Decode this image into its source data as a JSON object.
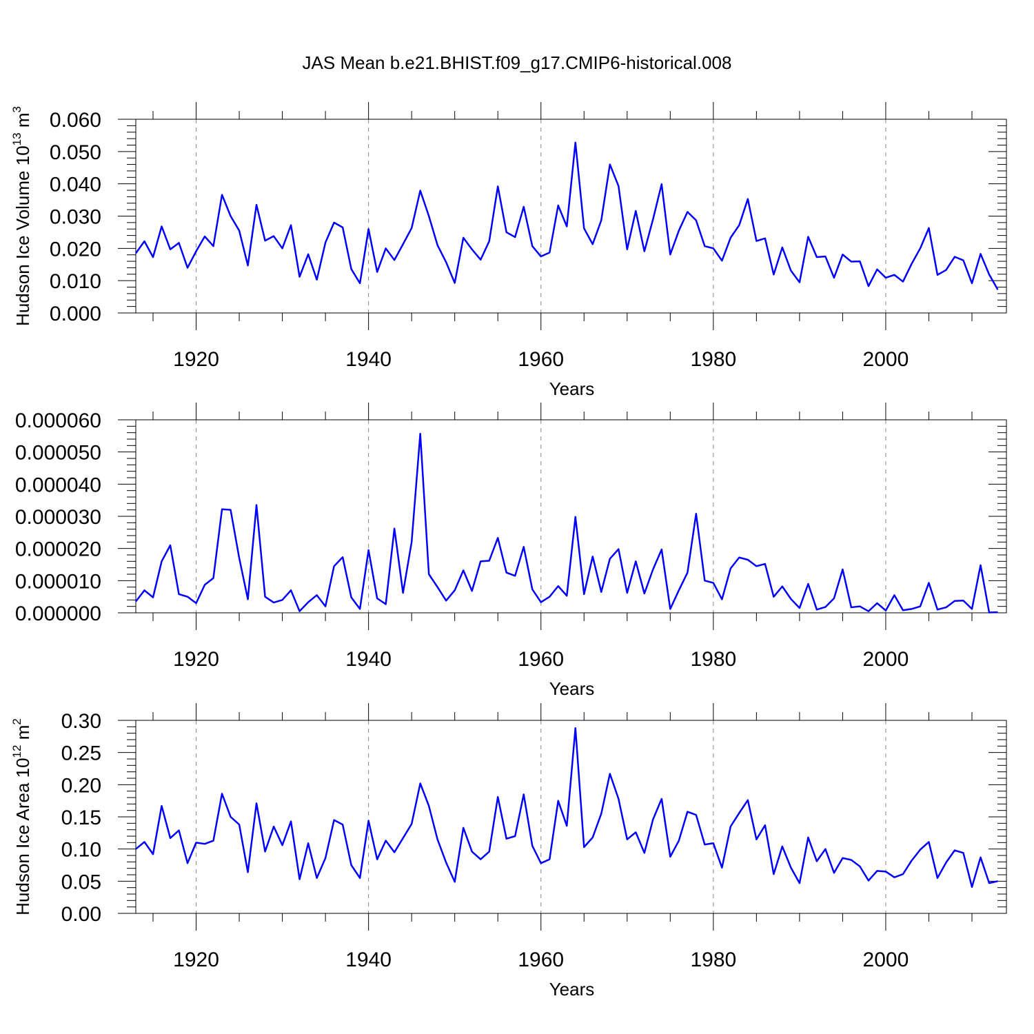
{
  "title": "JAS Mean b.e21.BHIST.f09_g17.CMIP6-historical.008",
  "chart_data": [
    {
      "type": "line",
      "ylabel": "Hudson Ice Volume 10",
      "ylabel_sup": "13",
      "ylabel_unit": " m",
      "ylabel_unit_sup": "3",
      "xlabel": "Years",
      "xlim": [
        1913,
        2014
      ],
      "ylim": [
        0,
        0.06
      ],
      "xticks": [
        1920,
        1940,
        1960,
        1980,
        2000
      ],
      "xtick_labels": [
        "1920",
        "1940",
        "1960",
        "1980",
        "2000"
      ],
      "yticks": [
        0,
        0.01,
        0.02,
        0.03,
        0.04,
        0.05,
        0.06
      ],
      "ytick_labels": [
        "0.000",
        "0.010",
        "0.020",
        "0.030",
        "0.040",
        "0.050",
        "0.060"
      ],
      "grid": "vertical-dashed at major x ticks",
      "x_start": 1913,
      "x_step": 1,
      "series": [
        {
          "color": "#0000ff",
          "values": [
            0.0185,
            0.0222,
            0.0173,
            0.0268,
            0.0197,
            0.0217,
            0.014,
            0.0191,
            0.0237,
            0.0207,
            0.0366,
            0.03,
            0.0255,
            0.0147,
            0.0335,
            0.0224,
            0.0238,
            0.02,
            0.0272,
            0.0112,
            0.0182,
            0.0103,
            0.0218,
            0.028,
            0.0265,
            0.0136,
            0.0092,
            0.026,
            0.0127,
            0.02,
            0.0164,
            0.0213,
            0.0263,
            0.0379,
            0.03,
            0.021,
            0.0157,
            0.0093,
            0.0233,
            0.0197,
            0.0165,
            0.0222,
            0.0392,
            0.025,
            0.0235,
            0.0329,
            0.0207,
            0.0175,
            0.0187,
            0.0333,
            0.0268,
            0.0528,
            0.0262,
            0.0213,
            0.0287,
            0.046,
            0.0393,
            0.0197,
            0.0316,
            0.0191,
            0.029,
            0.0399,
            0.0181,
            0.0255,
            0.0313,
            0.0287,
            0.0207,
            0.02,
            0.0162,
            0.0233,
            0.0272,
            0.0353,
            0.0223,
            0.0231,
            0.0119,
            0.0203,
            0.0131,
            0.0095,
            0.0236,
            0.0173,
            0.0175,
            0.0109,
            0.0181,
            0.0159,
            0.016,
            0.0083,
            0.0135,
            0.0109,
            0.0118,
            0.0097,
            0.0152,
            0.02,
            0.0263,
            0.0118,
            0.0133,
            0.0174,
            0.0163,
            0.0092,
            0.0183,
            0.0119,
            0.0072
          ]
        }
      ]
    },
    {
      "type": "line",
      "ylabel": "",
      "xlabel": "Years",
      "xlim": [
        1913,
        2014
      ],
      "ylim": [
        0,
        6e-05
      ],
      "xticks": [
        1920,
        1940,
        1960,
        1980,
        2000
      ],
      "xtick_labels": [
        "1920",
        "1940",
        "1960",
        "1980",
        "2000"
      ],
      "yticks": [
        0,
        1e-05,
        2e-05,
        3e-05,
        4e-05,
        5e-05,
        6e-05
      ],
      "ytick_labels": [
        "0.000000",
        "0.000010",
        "0.000020",
        "0.000030",
        "0.000040",
        "0.000050",
        "0.000060"
      ],
      "grid": "vertical-dashed at major x ticks",
      "x_start": 1913,
      "x_step": 1,
      "series": [
        {
          "color": "#0000ff",
          "values": [
            3.5e-06,
            7e-06,
            4.8e-06,
            1.6e-05,
            2.1e-05,
            5.8e-06,
            5e-06,
            3e-06,
            8.7e-06,
            1.08e-05,
            3.22e-05,
            3.2e-05,
            1.7e-05,
            4.2e-06,
            3.35e-05,
            5e-06,
            3.2e-06,
            4e-06,
            7e-06,
            5e-07,
            3.3e-06,
            5.5e-06,
            2e-06,
            1.45e-05,
            1.73e-05,
            4.8e-06,
            1.2e-06,
            1.95e-05,
            4.5e-06,
            2.7e-06,
            2.62e-05,
            6.2e-06,
            2.2e-05,
            5.57e-05,
            1.2e-05,
            8e-06,
            3.8e-06,
            7e-06,
            1.32e-05,
            6.8e-06,
            1.6e-05,
            1.62e-05,
            2.33e-05,
            1.25e-05,
            1.15e-05,
            2.05e-05,
            7.3e-06,
            3.3e-06,
            5e-06,
            8.3e-06,
            5.3e-06,
            2.98e-05,
            5.8e-06,
            1.75e-05,
            6.5e-06,
            1.68e-05,
            1.98e-05,
            6.2e-06,
            1.6e-05,
            6e-06,
            1.35e-05,
            1.97e-05,
            1.2e-06,
            7e-06,
            1.25e-05,
            3.08e-05,
            1e-05,
            9.3e-06,
            4.2e-06,
            1.38e-05,
            1.72e-05,
            1.65e-05,
            1.45e-05,
            1.52e-05,
            5e-06,
            8.2e-06,
            4.3e-06,
            1.5e-06,
            9e-06,
            1e-06,
            1.8e-06,
            4.5e-06,
            1.35e-05,
            1.7e-06,
            2e-06,
            5e-07,
            3e-06,
            7e-07,
            5.5e-06,
            8e-07,
            1.2e-06,
            2e-06,
            9.3e-06,
            1e-06,
            1.7e-06,
            3.7e-06,
            3.8e-06,
            1.2e-06,
            1.48e-05,
            1e-07,
            2e-07
          ]
        }
      ]
    },
    {
      "type": "line",
      "ylabel": "Hudson Ice Area 10",
      "ylabel_sup": "12",
      "ylabel_unit": " m",
      "ylabel_unit_sup": "2",
      "xlabel": "Years",
      "xlim": [
        1913,
        2014
      ],
      "ylim": [
        0,
        0.3
      ],
      "xticks": [
        1920,
        1940,
        1960,
        1980,
        2000
      ],
      "xtick_labels": [
        "1920",
        "1940",
        "1960",
        "1980",
        "2000"
      ],
      "yticks": [
        0,
        0.05,
        0.1,
        0.15,
        0.2,
        0.25,
        0.3
      ],
      "ytick_labels": [
        "0.00",
        "0.05",
        "0.10",
        "0.15",
        "0.20",
        "0.25",
        "0.30"
      ],
      "grid": "vertical-dashed at major x ticks",
      "x_start": 1913,
      "x_step": 1,
      "series": [
        {
          "color": "#0000ff",
          "values": [
            0.1,
            0.111,
            0.092,
            0.167,
            0.117,
            0.129,
            0.078,
            0.11,
            0.108,
            0.113,
            0.186,
            0.15,
            0.138,
            0.064,
            0.171,
            0.096,
            0.135,
            0.106,
            0.143,
            0.053,
            0.109,
            0.055,
            0.086,
            0.145,
            0.138,
            0.075,
            0.055,
            0.144,
            0.084,
            0.113,
            0.095,
            0.117,
            0.139,
            0.202,
            0.167,
            0.115,
            0.079,
            0.049,
            0.133,
            0.096,
            0.084,
            0.096,
            0.181,
            0.116,
            0.12,
            0.185,
            0.105,
            0.078,
            0.084,
            0.175,
            0.136,
            0.288,
            0.103,
            0.118,
            0.155,
            0.217,
            0.178,
            0.115,
            0.126,
            0.094,
            0.146,
            0.178,
            0.088,
            0.113,
            0.158,
            0.153,
            0.107,
            0.109,
            0.071,
            0.135,
            0.156,
            0.176,
            0.115,
            0.137,
            0.061,
            0.104,
            0.071,
            0.047,
            0.118,
            0.081,
            0.1,
            0.063,
            0.086,
            0.083,
            0.073,
            0.051,
            0.066,
            0.065,
            0.056,
            0.061,
            0.082,
            0.099,
            0.111,
            0.055,
            0.079,
            0.098,
            0.094,
            0.041,
            0.087,
            0.047,
            0.05
          ]
        }
      ]
    }
  ]
}
